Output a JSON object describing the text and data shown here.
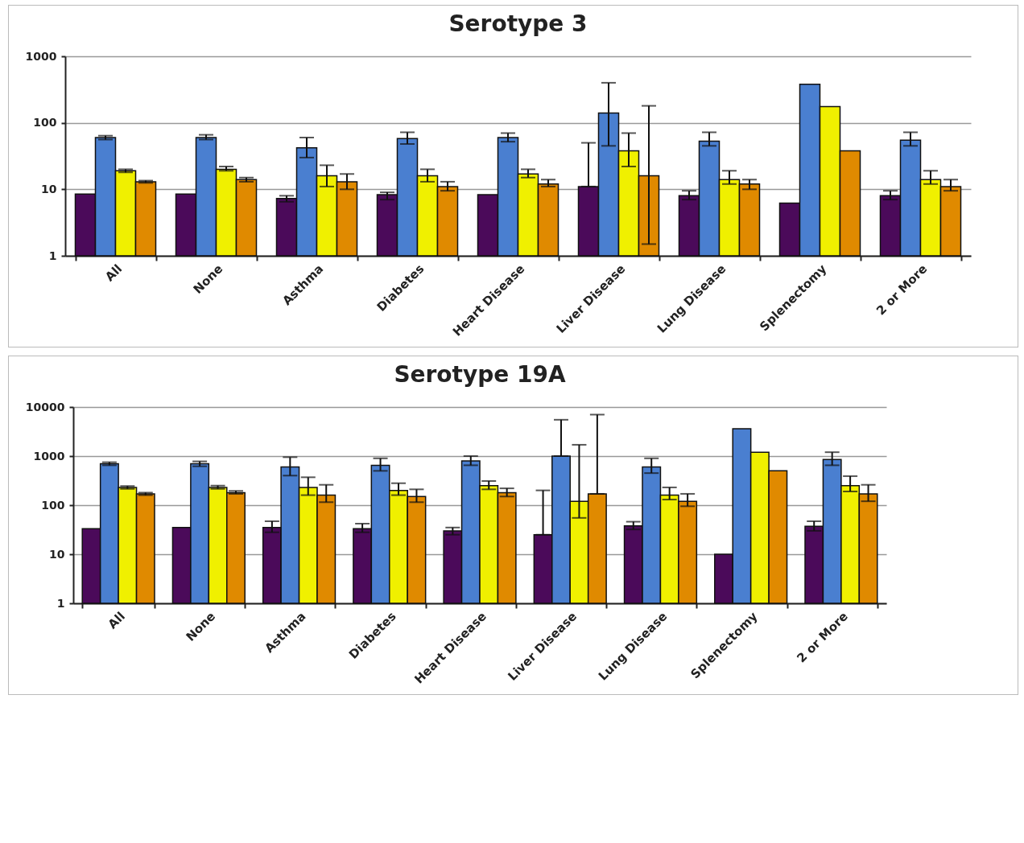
{
  "chart_data": [
    {
      "type": "bar",
      "title": "Serotype 3",
      "categories": [
        "All",
        "None",
        "Asthma",
        "Diabetes",
        "Heart Disease",
        "Liver Disease",
        "Lung Disease",
        "Splenectomy",
        "2 or More"
      ],
      "log": true,
      "grid": "y",
      "ylim": [
        1,
        1000
      ],
      "yticks": [
        1,
        10,
        100,
        1000
      ],
      "series": [
        {
          "color": "#4b0a5a",
          "values": [
            8.5,
            8.5,
            7.3,
            8.3,
            8.3,
            11,
            8,
            6.2,
            8
          ],
          "errors": [
            null,
            null,
            [
              6.5,
              8
            ],
            [
              7,
              9
            ],
            null,
            [
              11,
              50
            ],
            [
              7,
              9.5
            ],
            null,
            [
              7,
              9.5
            ]
          ]
        },
        {
          "color": "#4a7fd0",
          "values": [
            60,
            60,
            42,
            58,
            60,
            140,
            53,
            380,
            55
          ],
          "errors": [
            [
              56,
              64
            ],
            [
              56,
              66
            ],
            [
              30,
              60
            ],
            [
              48,
              72
            ],
            [
              52,
              70
            ],
            [
              45,
              400
            ],
            [
              45,
              72
            ],
            null,
            [
              45,
              72
            ]
          ]
        },
        {
          "color": "#f0f000",
          "values": [
            19,
            20,
            16,
            16,
            17,
            38,
            14,
            175,
            14
          ],
          "errors": [
            [
              18,
              20
            ],
            [
              19,
              22
            ],
            [
              11,
              23
            ],
            [
              13,
              20
            ],
            [
              15,
              20
            ],
            [
              22,
              70
            ],
            [
              12,
              19
            ],
            null,
            [
              12,
              19
            ]
          ]
        },
        {
          "color": "#e08a00",
          "values": [
            13,
            14,
            13,
            11,
            12,
            16,
            12,
            38,
            11
          ],
          "errors": [
            [
              12.5,
              13.5
            ],
            [
              13,
              15
            ],
            [
              10,
              17
            ],
            [
              9.5,
              13
            ],
            [
              11,
              14
            ],
            [
              1.5,
              180
            ],
            [
              10,
              14
            ],
            null,
            [
              9.5,
              14
            ]
          ]
        }
      ]
    },
    {
      "type": "bar",
      "title": "Serotype 19A",
      "categories": [
        "All",
        "None",
        "Asthma",
        "Diabetes",
        "Heart Disease",
        "Liver Disease",
        "Lung Disease",
        "Splenectomy",
        "2 or More"
      ],
      "log": true,
      "grid": "y",
      "ylim": [
        1,
        10000
      ],
      "yticks": [
        1,
        10,
        100,
        1000,
        10000
      ],
      "series": [
        {
          "color": "#4b0a5a",
          "values": [
            33,
            35,
            35,
            33,
            30,
            25,
            38,
            10,
            37
          ],
          "errors": [
            null,
            null,
            [
              28,
              47
            ],
            [
              28,
              42
            ],
            [
              25,
              35
            ],
            [
              25,
              200
            ],
            [
              32,
              46
            ],
            null,
            [
              30,
              47
            ]
          ]
        },
        {
          "color": "#4a7fd0",
          "values": [
            700,
            700,
            600,
            650,
            800,
            1000,
            600,
            3600,
            850
          ],
          "errors": [
            [
              650,
              750
            ],
            [
              620,
              780
            ],
            [
              400,
              950
            ],
            [
              500,
              900
            ],
            [
              650,
              1000
            ],
            [
              1000,
              5500
            ],
            [
              450,
              900
            ],
            null,
            [
              650,
              1200
            ]
          ]
        },
        {
          "color": "#f0f000",
          "values": [
            230,
            230,
            230,
            200,
            250,
            120,
            160,
            1200,
            250
          ],
          "errors": [
            [
              215,
              245
            ],
            [
              215,
              250
            ],
            [
              160,
              370
            ],
            [
              160,
              280
            ],
            [
              210,
              310
            ],
            [
              55,
              1700
            ],
            [
              130,
              230
            ],
            null,
            [
              190,
              390
            ]
          ]
        },
        {
          "color": "#e08a00",
          "values": [
            170,
            180,
            160,
            150,
            180,
            170,
            120,
            500,
            170
          ],
          "errors": [
            [
              160,
              180
            ],
            [
              170,
              195
            ],
            [
              115,
              260
            ],
            [
              115,
              210
            ],
            [
              150,
              220
            ],
            [
              170,
              7000
            ],
            [
              95,
              170
            ],
            null,
            [
              120,
              260
            ]
          ]
        }
      ]
    }
  ]
}
